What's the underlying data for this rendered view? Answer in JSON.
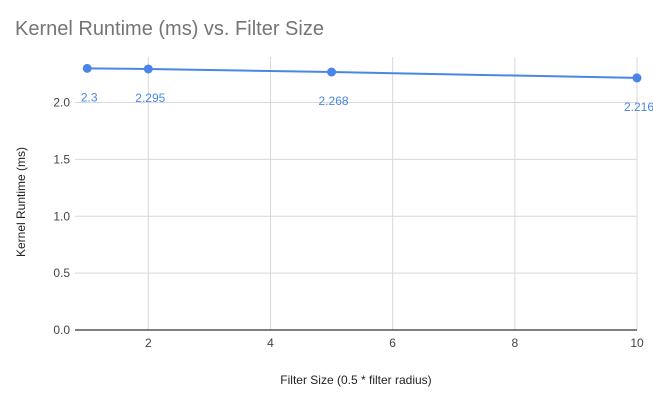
{
  "chart_data": {
    "type": "line",
    "title": "Kernel Runtime (ms) vs. Filter Size",
    "xlabel": "Filter Size (0.5 * filter radius)",
    "ylabel": "Kernel Runtime (ms)",
    "xlim": [
      0.8,
      10
    ],
    "ylim": [
      0,
      2.4
    ],
    "x_ticks": [
      2,
      4,
      6,
      8,
      10
    ],
    "y_ticks": [
      0.0,
      0.5,
      1.0,
      1.5,
      2.0
    ],
    "x_tick_labels": [
      "2",
      "4",
      "6",
      "8",
      "10"
    ],
    "y_tick_labels": [
      "0.0",
      "0.5",
      "1.0",
      "1.5",
      "2.0"
    ],
    "grid": true,
    "legend": "none",
    "colors": {
      "series": "#4a86e8",
      "grid": "#d9d9d9",
      "axis": "#333333"
    },
    "series": [
      {
        "x": [
          1,
          2,
          5,
          10
        ],
        "values": [
          2.3,
          2.295,
          2.268,
          2.216
        ],
        "data_labels": [
          "2.3",
          "2.295",
          "2.268",
          "2.216"
        ]
      }
    ]
  }
}
